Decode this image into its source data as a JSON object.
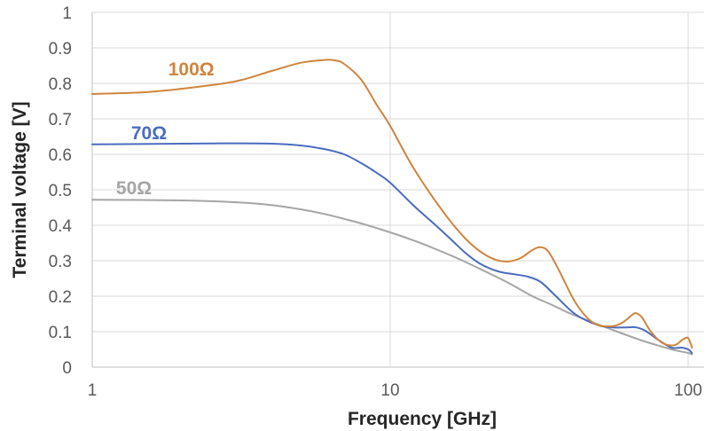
{
  "chart_data": {
    "type": "line",
    "xlabel": "Frequency [GHz]",
    "ylabel": "Terminal voltage [V]",
    "xscale": "log",
    "xlim": [
      1,
      100
    ],
    "ylim": [
      0,
      1
    ],
    "xticks": [
      "1",
      "10",
      "100"
    ],
    "yticks": [
      "0",
      "0.1",
      "0.2",
      "0.3",
      "0.4",
      "0.5",
      "0.6",
      "0.7",
      "0.8",
      "0.9",
      "1"
    ],
    "grid": true,
    "legend": "inline",
    "series": [
      {
        "name": "100Ω",
        "color": "#D0843C",
        "label_at": [
          2.15,
          0.84
        ],
        "points": [
          [
            1,
            0.77
          ],
          [
            1.5,
            0.775
          ],
          [
            2,
            0.785
          ],
          [
            3,
            0.805
          ],
          [
            4,
            0.835
          ],
          [
            5,
            0.858
          ],
          [
            6,
            0.866
          ],
          [
            6.5,
            0.865
          ],
          [
            7,
            0.855
          ],
          [
            8,
            0.81
          ],
          [
            9,
            0.74
          ],
          [
            10,
            0.68
          ],
          [
            12,
            0.56
          ],
          [
            15,
            0.44
          ],
          [
            18,
            0.36
          ],
          [
            21,
            0.315
          ],
          [
            24,
            0.298
          ],
          [
            27,
            0.305
          ],
          [
            30,
            0.33
          ],
          [
            32,
            0.338
          ],
          [
            34,
            0.325
          ],
          [
            37,
            0.27
          ],
          [
            42,
            0.18
          ],
          [
            48,
            0.125
          ],
          [
            55,
            0.115
          ],
          [
            60,
            0.125
          ],
          [
            65,
            0.148
          ],
          [
            67,
            0.152
          ],
          [
            70,
            0.14
          ],
          [
            75,
            0.1
          ],
          [
            82,
            0.068
          ],
          [
            90,
            0.062
          ],
          [
            96,
            0.078
          ],
          [
            100,
            0.082
          ],
          [
            103,
            0.055
          ]
        ]
      },
      {
        "name": "70Ω",
        "color": "#4A6CBF",
        "label_at": [
          1.55,
          0.66
        ],
        "points": [
          [
            1,
            0.628
          ],
          [
            2,
            0.63
          ],
          [
            3,
            0.631
          ],
          [
            4,
            0.63
          ],
          [
            5,
            0.625
          ],
          [
            6,
            0.615
          ],
          [
            7,
            0.6
          ],
          [
            8,
            0.575
          ],
          [
            9,
            0.548
          ],
          [
            10,
            0.52
          ],
          [
            12,
            0.455
          ],
          [
            14,
            0.405
          ],
          [
            16,
            0.36
          ],
          [
            18,
            0.32
          ],
          [
            20,
            0.292
          ],
          [
            23,
            0.27
          ],
          [
            26,
            0.262
          ],
          [
            29,
            0.255
          ],
          [
            32,
            0.24
          ],
          [
            36,
            0.2
          ],
          [
            42,
            0.148
          ],
          [
            50,
            0.118
          ],
          [
            56,
            0.112
          ],
          [
            62,
            0.112
          ],
          [
            67,
            0.112
          ],
          [
            72,
            0.102
          ],
          [
            80,
            0.075
          ],
          [
            88,
            0.055
          ],
          [
            95,
            0.055
          ],
          [
            100,
            0.05
          ],
          [
            103,
            0.04
          ]
        ]
      },
      {
        "name": "50Ω",
        "color": "#A5A5A5",
        "label_at": [
          1.38,
          0.505
        ],
        "points": [
          [
            1,
            0.472
          ],
          [
            2,
            0.47
          ],
          [
            3,
            0.465
          ],
          [
            4,
            0.457
          ],
          [
            5,
            0.445
          ],
          [
            6,
            0.432
          ],
          [
            7,
            0.418
          ],
          [
            8,
            0.405
          ],
          [
            10,
            0.38
          ],
          [
            12,
            0.357
          ],
          [
            14,
            0.335
          ],
          [
            17,
            0.305
          ],
          [
            20,
            0.277
          ],
          [
            25,
            0.237
          ],
          [
            30,
            0.2
          ],
          [
            35,
            0.175
          ],
          [
            40,
            0.152
          ],
          [
            50,
            0.12
          ],
          [
            60,
            0.095
          ],
          [
            70,
            0.075
          ],
          [
            80,
            0.06
          ],
          [
            90,
            0.048
          ],
          [
            100,
            0.04
          ],
          [
            103,
            0.036
          ]
        ]
      }
    ]
  }
}
